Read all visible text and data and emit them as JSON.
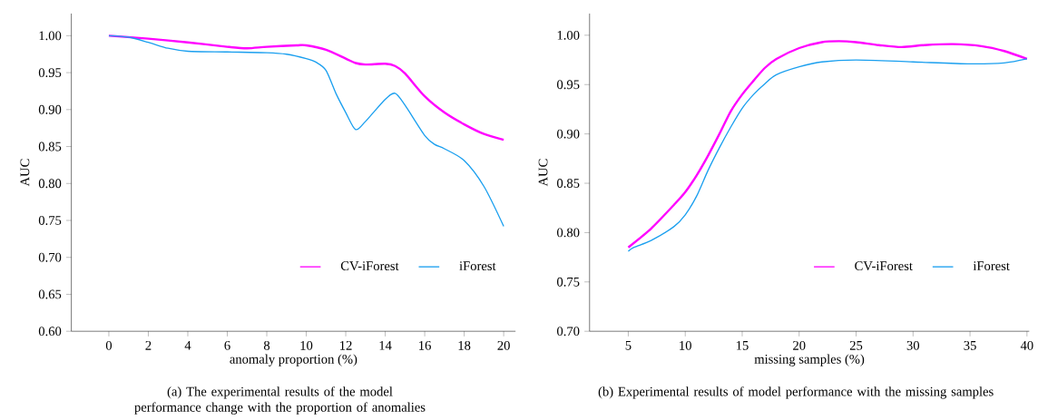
{
  "chart_data": [
    {
      "type": "line",
      "xlabel": "anomaly proportion (%)",
      "ylabel": "AUC",
      "legend": "bottom right",
      "grid": false,
      "marker": "none",
      "line_style": "solid",
      "xlim": [
        -1.9,
        20.6
      ],
      "ylim": [
        0.6,
        1.03
      ],
      "xticks": [
        0,
        2,
        4,
        6,
        8,
        10,
        12,
        14,
        16,
        18,
        20
      ],
      "yticks": [
        {
          "value": 0.6,
          "label": "0.60"
        },
        {
          "value": 0.65,
          "label": "0.65"
        },
        {
          "value": 0.7,
          "label": "0.70"
        },
        {
          "value": 0.75,
          "label": "0.75"
        },
        {
          "value": 0.8,
          "label": "0.80"
        },
        {
          "value": 0.85,
          "label": "0.85"
        },
        {
          "value": 0.9,
          "label": "0.90"
        },
        {
          "value": 0.95,
          "label": "0.95"
        },
        {
          "value": 1.0,
          "label": "1.00"
        }
      ],
      "series": [
        {
          "name": "CV-iForest",
          "color": "#ff00ff",
          "x": [
            0,
            2,
            4,
            6,
            7,
            8,
            9.5,
            10,
            11,
            12,
            12.5,
            13,
            14,
            14.5,
            15,
            16,
            17,
            18,
            19,
            20
          ],
          "values": [
            1.0,
            0.996,
            0.991,
            0.985,
            0.983,
            0.985,
            0.987,
            0.987,
            0.981,
            0.969,
            0.963,
            0.961,
            0.962,
            0.959,
            0.949,
            0.918,
            0.896,
            0.88,
            0.867,
            0.859
          ]
        },
        {
          "name": "iForest",
          "color": "#1a9fef",
          "x": [
            0,
            1,
            2,
            3,
            4,
            6,
            8,
            9,
            10,
            10.5,
            11,
            11.5,
            12,
            12.5,
            13,
            14,
            14.5,
            15,
            16,
            16.5,
            17,
            18,
            19,
            20
          ],
          "values": [
            1.0,
            0.998,
            0.991,
            0.983,
            0.979,
            0.978,
            0.977,
            0.975,
            0.969,
            0.964,
            0.953,
            0.922,
            0.896,
            0.873,
            0.884,
            0.914,
            0.922,
            0.906,
            0.865,
            0.853,
            0.847,
            0.831,
            0.796,
            0.742
          ]
        }
      ],
      "annotations": [
        "(a) The experimental results of the model performance change with the proportion of anomalies"
      ]
    },
    {
      "type": "line",
      "xlabel": "missing samples (%)",
      "ylabel": "AUC",
      "legend": "bottom right",
      "grid": false,
      "marker": "none",
      "line_style": "solid",
      "xlim": [
        1.6,
        40.2
      ],
      "ylim": [
        0.7,
        1.022
      ],
      "xticks": [
        5,
        10,
        15,
        20,
        25,
        30,
        35,
        40
      ],
      "yticks": [
        {
          "value": 0.7,
          "label": "0.70"
        },
        {
          "value": 0.75,
          "label": "0.75"
        },
        {
          "value": 0.8,
          "label": "0.80"
        },
        {
          "value": 0.85,
          "label": "0.85"
        },
        {
          "value": 0.9,
          "label": "0.90"
        },
        {
          "value": 0.95,
          "label": "0.95"
        },
        {
          "value": 1.0,
          "label": "1.00"
        }
      ],
      "series": [
        {
          "name": "CV-iForest",
          "color": "#ff00ff",
          "x": [
            5,
            7,
            9,
            10,
            11,
            12,
            13,
            14,
            15,
            16,
            17,
            18,
            20,
            22,
            23.5,
            25,
            27,
            29,
            31,
            33.5,
            36,
            38,
            40
          ],
          "values": [
            0.785,
            0.804,
            0.828,
            0.841,
            0.858,
            0.878,
            0.9,
            0.923,
            0.94,
            0.954,
            0.967,
            0.976,
            0.987,
            0.993,
            0.994,
            0.993,
            0.99,
            0.988,
            0.99,
            0.991,
            0.989,
            0.984,
            0.976
          ]
        },
        {
          "name": "iForest",
          "color": "#1a9fef",
          "x": [
            5,
            5.5,
            7,
            9,
            10,
            11,
            12,
            13,
            14,
            15,
            16,
            17,
            18,
            20,
            22,
            25,
            30,
            35,
            38,
            40
          ],
          "values": [
            0.781,
            0.785,
            0.792,
            0.806,
            0.818,
            0.837,
            0.863,
            0.886,
            0.907,
            0.926,
            0.94,
            0.951,
            0.96,
            0.968,
            0.973,
            0.975,
            0.973,
            0.971,
            0.972,
            0.976
          ]
        }
      ],
      "annotations": [
        "(b) Experimental results of model performance with the missing samples"
      ]
    }
  ]
}
